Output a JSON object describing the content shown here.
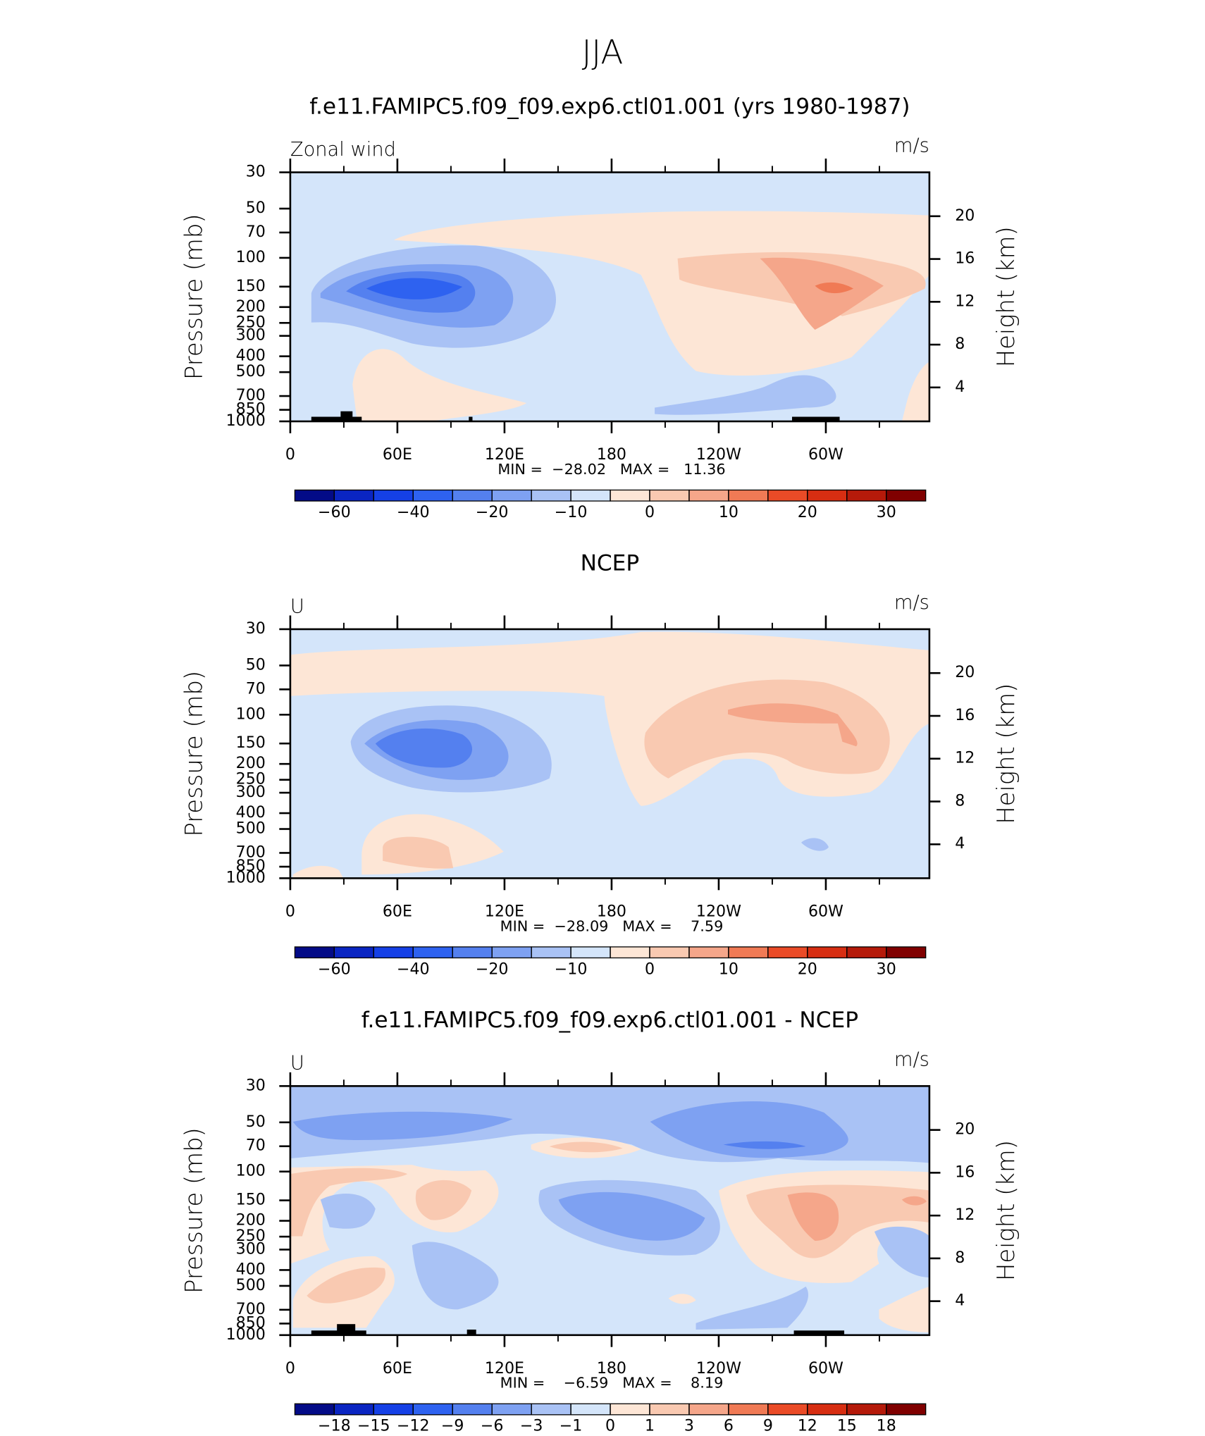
{
  "title": "JJA",
  "colormap": [
    "#030b87",
    "#0a25c2",
    "#1540e6",
    "#2e62f0",
    "#5480ef",
    "#7ea1f2",
    "#a9c2f5",
    "#d4e5fa",
    "#fde6d6",
    "#f9c9b1",
    "#f5a68a",
    "#f07a55",
    "#ea4b27",
    "#d72e12",
    "#b51a0a",
    "#800000"
  ],
  "panels": [
    {
      "title": "f.e11.FAMIPC5.f09_f09.exp6.ctl01.001 (yrs 1980-1987)",
      "left_label": "Zonal wind",
      "units": "m/s",
      "ylabel": "Pressure (mb)",
      "y2label": "Height (km)",
      "ylog": true,
      "ylim": [
        1000,
        30
      ],
      "yticks": [
        30,
        50,
        70,
        100,
        150,
        200,
        250,
        300,
        400,
        500,
        700,
        850,
        1000
      ],
      "y2lim": [
        0.83,
        24.1
      ],
      "y2ticks": [
        4,
        8,
        12,
        16,
        20
      ],
      "xlim": [
        0,
        358
      ],
      "xticks": [
        0,
        {
          "value": 60,
          "label": "60E"
        },
        {
          "value": 120,
          "label": "120E"
        },
        180,
        {
          "value": 240,
          "label": "120W"
        },
        {
          "value": 300,
          "label": "60W"
        }
      ],
      "xminorticks": [
        30,
        90,
        150,
        210,
        270,
        330
      ],
      "stats": "MIN =  −28.02   MAX =   11.36",
      "levels": [
        -60,
        -50,
        -40,
        -30,
        -20,
        -15,
        -10,
        -5,
        0,
        5,
        10,
        15,
        20,
        25,
        30
      ],
      "level_labels": [
        {
          "value": -60,
          "label": "−60"
        },
        {
          "value": -40,
          "label": "−40"
        },
        {
          "value": -20,
          "label": "−20"
        },
        {
          "value": -10,
          "label": "−10"
        },
        0,
        10,
        20,
        30
      ]
    },
    {
      "title": "NCEP",
      "left_label": "U",
      "units": "m/s",
      "ylabel": "Pressure (mb)",
      "y2label": "Height (km)",
      "ylog": true,
      "ylim": [
        1000,
        30
      ],
      "yticks": [
        30,
        50,
        70,
        100,
        150,
        200,
        250,
        300,
        400,
        500,
        700,
        850,
        1000
      ],
      "y2lim": [
        0.83,
        24.1
      ],
      "y2ticks": [
        4,
        8,
        12,
        16,
        20
      ],
      "xlim": [
        0,
        358
      ],
      "xticks": [
        0,
        {
          "value": 60,
          "label": "60E"
        },
        {
          "value": 120,
          "label": "120E"
        },
        180,
        {
          "value": 240,
          "label": "120W"
        },
        {
          "value": 300,
          "label": "60W"
        }
      ],
      "xminorticks": [
        30,
        90,
        150,
        210,
        270,
        330
      ],
      "stats": "MIN =  −28.09   MAX =    7.59",
      "levels": [
        -60,
        -50,
        -40,
        -30,
        -20,
        -15,
        -10,
        -5,
        0,
        5,
        10,
        15,
        20,
        25,
        30
      ],
      "level_labels": [
        {
          "value": -60,
          "label": "−60"
        },
        {
          "value": -40,
          "label": "−40"
        },
        {
          "value": -20,
          "label": "−20"
        },
        {
          "value": -10,
          "label": "−10"
        },
        0,
        10,
        20,
        30
      ]
    },
    {
      "title": "f.e11.FAMIPC5.f09_f09.exp6.ctl01.001 - NCEP",
      "left_label": "U",
      "units": "m/s",
      "ylabel": "Pressure (mb)",
      "y2label": "Height (km)",
      "ylog": true,
      "ylim": [
        1000,
        30
      ],
      "yticks": [
        30,
        50,
        70,
        100,
        150,
        200,
        250,
        300,
        400,
        500,
        700,
        850,
        1000
      ],
      "y2lim": [
        0.83,
        24.1
      ],
      "y2ticks": [
        4,
        8,
        12,
        16,
        20
      ],
      "xlim": [
        0,
        358
      ],
      "xticks": [
        0,
        {
          "value": 60,
          "label": "60E"
        },
        {
          "value": 120,
          "label": "120E"
        },
        180,
        {
          "value": 240,
          "label": "120W"
        },
        {
          "value": 300,
          "label": "60W"
        }
      ],
      "xminorticks": [
        30,
        90,
        150,
        210,
        270,
        330
      ],
      "stats": "MIN =    −6.59   MAX =    8.19",
      "levels": [
        -18,
        -15,
        -12,
        -9,
        -6,
        -3,
        -1,
        0,
        1,
        3,
        6,
        9,
        12,
        15,
        18
      ],
      "level_labels": [
        {
          "value": -18,
          "label": "−18"
        },
        {
          "value": -15,
          "label": "−15"
        },
        {
          "value": -12,
          "label": "−12"
        },
        {
          "value": -9,
          "label": "−9"
        },
        {
          "value": -6,
          "label": "−6"
        },
        {
          "value": -3,
          "label": "−3"
        },
        {
          "value": -1,
          "label": "−1"
        },
        0,
        1,
        3,
        6,
        9,
        12,
        15,
        18
      ]
    }
  ]
}
